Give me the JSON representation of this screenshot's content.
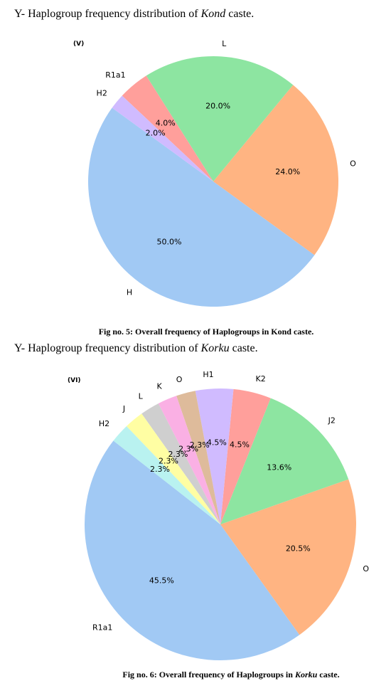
{
  "chart_data": [
    {
      "type": "pie",
      "heading": [
        "Y- Haplogroup frequency distribution of ",
        "Kond",
        " caste."
      ],
      "panel_label": "(V)",
      "categories": [
        "H",
        "O",
        "L",
        "R1a1",
        "H2"
      ],
      "values": [
        50.0,
        24.0,
        20.0,
        4.0,
        2.0
      ],
      "value_labels": [
        "50.0%",
        "24.0%",
        "20.0%",
        "4.0%",
        "2.0%"
      ],
      "colors": [
        "#a1c9f4",
        "#ffb482",
        "#8de5a1",
        "#ff9f9b",
        "#d0bbff"
      ],
      "caption": [
        "Fig no. 5: Overall frequency of Haplogroups in Kond caste."
      ]
    },
    {
      "type": "pie",
      "heading": [
        "Y- Haplogroup frequency distribution of ",
        "Korku",
        " caste."
      ],
      "panel_label": "(VI)",
      "categories": [
        "R1a1",
        "O",
        "J2",
        "K2",
        "H1",
        "O",
        "K",
        "L",
        "J",
        "H2"
      ],
      "values": [
        45.5,
        20.5,
        13.6,
        4.5,
        4.5,
        2.3,
        2.3,
        2.3,
        2.3,
        2.3
      ],
      "value_labels": [
        "45.5%",
        "20.5%",
        "13.6%",
        "4.5%",
        "4.5%",
        "2.3%",
        "2.3%",
        "2.3%",
        "2.3%",
        "2.3%"
      ],
      "colors": [
        "#a1c9f4",
        "#ffb482",
        "#8de5a1",
        "#ff9f9b",
        "#d0bbff",
        "#debb9b",
        "#fab0e4",
        "#cfcfcf",
        "#fffea3",
        "#b9f2f0"
      ],
      "caption": [
        "Fig no. 6: Overall frequency of Haplogroups in ",
        "Korku",
        " caste."
      ]
    }
  ]
}
